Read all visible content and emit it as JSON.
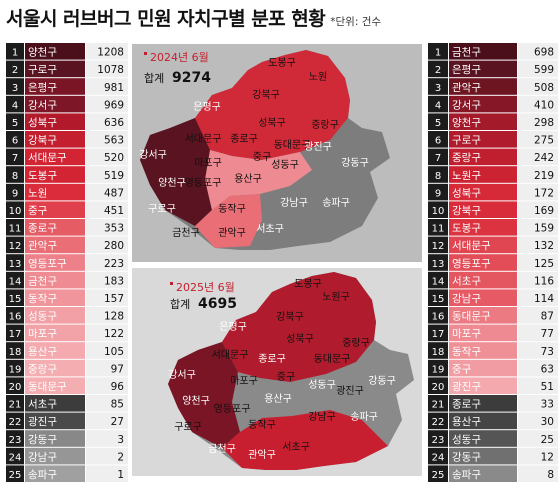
{
  "title": "서울시 러브버그 민원 자치구별 분포 현황",
  "unit": "*단위: 건수",
  "colors": {
    "rank_dark": "#1c1c1c",
    "top_bg": "#a8a8a8",
    "sub_bg": "#d9d9d9",
    "table_fill": "#efefef",
    "text_on_fill": "#ffffff"
  },
  "chart_data": [
    {
      "type": "table",
      "period": "2024년 6월",
      "total_label": "합계",
      "total": "9274",
      "rows": [
        {
          "rank": "1",
          "district": "양천구",
          "value": 1208,
          "shade": "#4a0f1a"
        },
        {
          "rank": "2",
          "district": "구로구",
          "value": 1078,
          "shade": "#5a1320"
        },
        {
          "rank": "3",
          "district": "은평구",
          "value": 981,
          "shade": "#7a1525"
        },
        {
          "rank": "4",
          "district": "강서구",
          "value": 969,
          "shade": "#7d1626"
        },
        {
          "rank": "5",
          "district": "성북구",
          "value": 636,
          "shade": "#b21a2b"
        },
        {
          "rank": "6",
          "district": "강북구",
          "value": 563,
          "shade": "#c41f2e"
        },
        {
          "rank": "7",
          "district": "서대문구",
          "value": 520,
          "shade": "#d22433"
        },
        {
          "rank": "8",
          "district": "도봉구",
          "value": 519,
          "shade": "#d22433"
        },
        {
          "rank": "9",
          "district": "노원",
          "value": 487,
          "shade": "#db2c3b"
        },
        {
          "rank": "10",
          "district": "중구",
          "value": 451,
          "shade": "#e0404c"
        },
        {
          "rank": "11",
          "district": "종로구",
          "value": 353,
          "shade": "#e55c65"
        },
        {
          "rank": "12",
          "district": "관악구",
          "value": 280,
          "shade": "#e96e76"
        },
        {
          "rank": "13",
          "district": "영등포구",
          "value": 223,
          "shade": "#ed8088"
        },
        {
          "rank": "14",
          "district": "금천구",
          "value": 183,
          "shade": "#ef8b92"
        },
        {
          "rank": "15",
          "district": "동작구",
          "value": 157,
          "shade": "#f0959b"
        },
        {
          "rank": "16",
          "district": "성동구",
          "value": 128,
          "shade": "#f2a0a5"
        },
        {
          "rank": "17",
          "district": "마포구",
          "value": 122,
          "shade": "#f2a3a8"
        },
        {
          "rank": "18",
          "district": "용산구",
          "value": 105,
          "shade": "#f4aaae"
        },
        {
          "rank": "19",
          "district": "중랑구",
          "value": 97,
          "shade": "#f4aeb2"
        },
        {
          "rank": "20",
          "district": "동대문구",
          "value": 96,
          "shade": "#f4aeb2"
        },
        {
          "rank": "21",
          "district": "서초구",
          "value": 85,
          "shade": "#3c3c3c"
        },
        {
          "rank": "22",
          "district": "광진구",
          "value": 27,
          "shade": "#4a4a4a"
        },
        {
          "rank": "23",
          "district": "강동구",
          "value": 3,
          "shade": "#888888"
        },
        {
          "rank": "24",
          "district": "강남구",
          "value": 2,
          "shade": "#969696"
        },
        {
          "rank": "25",
          "district": "송파구",
          "value": 1,
          "shade": "#a0a0a0"
        }
      ]
    },
    {
      "type": "table",
      "period": "2025년 6월",
      "total_label": "합계",
      "total": "4695",
      "rows": [
        {
          "rank": "1",
          "district": "금천구",
          "value": 698,
          "shade": "#4a0f1a"
        },
        {
          "rank": "2",
          "district": "은평구",
          "value": 599,
          "shade": "#5a1320"
        },
        {
          "rank": "3",
          "district": "관악구",
          "value": 508,
          "shade": "#6e1522"
        },
        {
          "rank": "4",
          "district": "강서구",
          "value": 410,
          "shade": "#851727"
        },
        {
          "rank": "5",
          "district": "양천구",
          "value": 298,
          "shade": "#a31a2b"
        },
        {
          "rank": "6",
          "district": "구로구",
          "value": 275,
          "shade": "#b01c2d"
        },
        {
          "rank": "7",
          "district": "중랑구",
          "value": 242,
          "shade": "#c01f2f"
        },
        {
          "rank": "8",
          "district": "노원구",
          "value": 219,
          "shade": "#cc2333"
        },
        {
          "rank": "9",
          "district": "성북구",
          "value": 172,
          "shade": "#d62a39"
        },
        {
          "rank": "10",
          "district": "강북구",
          "value": 169,
          "shade": "#d82c3b"
        },
        {
          "rank": "11",
          "district": "도봉구",
          "value": 159,
          "shade": "#db3340"
        },
        {
          "rank": "12",
          "district": "서대문구",
          "value": 132,
          "shade": "#e04652"
        },
        {
          "rank": "13",
          "district": "영등포구",
          "value": 125,
          "shade": "#e24d58"
        },
        {
          "rank": "14",
          "district": "서초구",
          "value": 116,
          "shade": "#e45660"
        },
        {
          "rank": "15",
          "district": "강남구",
          "value": 114,
          "shade": "#e55a64"
        },
        {
          "rank": "16",
          "district": "동대문구",
          "value": 87,
          "shade": "#eb7a82"
        },
        {
          "rank": "17",
          "district": "마포구",
          "value": 77,
          "shade": "#ee8a91"
        },
        {
          "rank": "18",
          "district": "동작구",
          "value": 73,
          "shade": "#ef9097"
        },
        {
          "rank": "19",
          "district": "중구",
          "value": 63,
          "shade": "#f19ca2"
        },
        {
          "rank": "20",
          "district": "광진구",
          "value": 51,
          "shade": "#f3a9ae"
        },
        {
          "rank": "21",
          "district": "종로구",
          "value": 33,
          "shade": "#3c3c3c"
        },
        {
          "rank": "22",
          "district": "용산구",
          "value": 30,
          "shade": "#454545"
        },
        {
          "rank": "23",
          "district": "성동구",
          "value": 25,
          "shade": "#555555"
        },
        {
          "rank": "24",
          "district": "강동구",
          "value": 12,
          "shade": "#707070"
        },
        {
          "rank": "25",
          "district": "송파구",
          "value": 8,
          "shade": "#8a8a8a"
        }
      ]
    }
  ]
}
